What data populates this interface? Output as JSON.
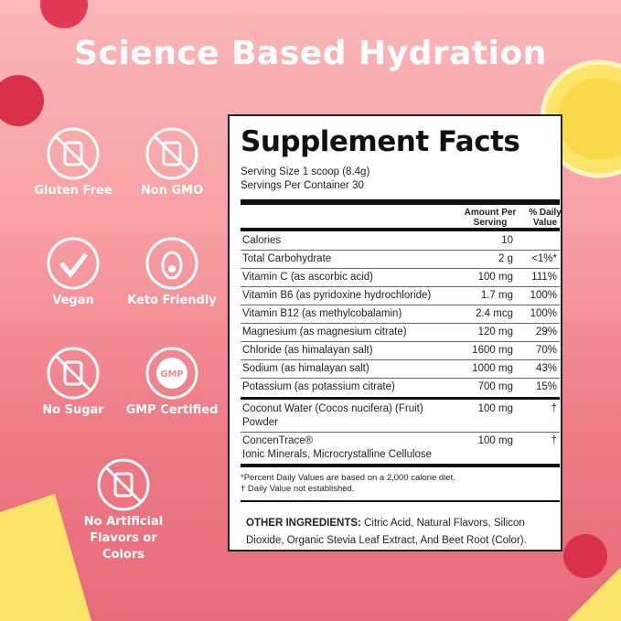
{
  "title": "Science Based Hydration",
  "badges": [
    "Gluten Free",
    "Non GMO",
    "Vegan",
    "Keto Friendly",
    "No Sugar",
    "GMP Certified",
    "No Artificial Flavors or Colors"
  ],
  "supplement_facts": {
    "title": "Supplement Facts",
    "serving_size": "Serving Size 1 scoop (8.4g)",
    "servings_per_container": "Servings Per Container 30",
    "amount_header": "Amount Per Serving",
    "dv_header": "% Daily Value",
    "nutrients": [
      {
        "name": "Calories",
        "amount": "10",
        "dv": ""
      },
      {
        "name": "Total Carbohydrate",
        "amount": "2 g",
        "dv": "<1%*"
      },
      {
        "name": "Vitamin C (as ascorbic acid)",
        "amount": "100 mg",
        "dv": "111%"
      },
      {
        "name": "Vitamin B6 (as pyridoxine hydrochloride)",
        "amount": "1.7 mg",
        "dv": "100%"
      },
      {
        "name": "Vitamin B12 (as methylcobalamin)",
        "amount": "2.4 mcg",
        "dv": "100%"
      },
      {
        "name": "Magnesium (as magnesium citrate)",
        "amount": "120 mg",
        "dv": "29%"
      },
      {
        "name": "Chloride (as himalayan salt)",
        "amount": "1600 mg",
        "dv": "70%"
      },
      {
        "name": "Sodium (as himalayan salt)",
        "amount": "1000 mg",
        "dv": "43%"
      },
      {
        "name": "Potassium (as potassium citrate)",
        "amount": "700 mg",
        "dv": "15%"
      }
    ],
    "blend": [
      {
        "name": "Coconut Water (Cocos nucifera) (Fruit) Powder",
        "amount": "100 mg",
        "dv": "†"
      },
      {
        "name": "ConcenTrace®",
        "sub": "Ionic Minerals, Microcrystalline Cellulose",
        "amount": "100 mg",
        "dv": "†"
      }
    ],
    "footnotes": [
      "*Percent Daily Values are based on a 2,000 calorie diet.",
      "† Daily Value not established."
    ],
    "other_ingredients_label": "OTHER INGREDIENTS:",
    "other_ingredients": "Citric Acid, Natural Flavors, Silicon Dioxide, Organic Stevia Leaf Extract, And Beet Root (Color)."
  }
}
